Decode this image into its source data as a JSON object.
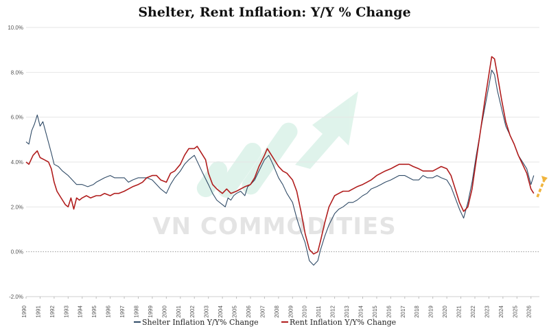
{
  "chart_data": {
    "type": "line",
    "title": "Shelter, Rent Inflation: Y/Y % Change",
    "xlabel": "",
    "ylabel": "",
    "xlim": [
      1990,
      2026.6
    ],
    "ylim": [
      -2,
      10
    ],
    "y_ticks": [
      "-2.0%",
      "0.0%",
      "2.0%",
      "4.0%",
      "6.0%",
      "8.0%",
      "10.0%"
    ],
    "y_tick_values": [
      -2,
      0,
      2,
      4,
      6,
      8,
      10
    ],
    "x_ticks": [
      "1990",
      "1991",
      "1992",
      "1993",
      "1994",
      "1995",
      "1996",
      "1997",
      "1998",
      "1999",
      "2000",
      "2001",
      "2002",
      "2003",
      "2004",
      "2005",
      "2006",
      "2007",
      "2008",
      "2009",
      "2010",
      "2011",
      "2012",
      "2013",
      "2014",
      "2015",
      "2016",
      "2017",
      "2018",
      "2019",
      "2020",
      "2021",
      "2022",
      "2023",
      "2024",
      "2025",
      "2026"
    ],
    "grid": true,
    "legend_position": "bottom",
    "watermark": "VN COMMODITIES",
    "series": [
      {
        "name": "Shelter Inflation Y/Y% Change",
        "color": "#2f4a66",
        "points": [
          [
            1990.0,
            4.9
          ],
          [
            1990.2,
            4.8
          ],
          [
            1990.4,
            5.4
          ],
          [
            1990.6,
            5.7
          ],
          [
            1990.8,
            6.1
          ],
          [
            1991.0,
            5.6
          ],
          [
            1991.2,
            5.8
          ],
          [
            1991.5,
            5.1
          ],
          [
            1991.8,
            4.4
          ],
          [
            1992.0,
            3.9
          ],
          [
            1992.3,
            3.8
          ],
          [
            1992.6,
            3.6
          ],
          [
            1993.0,
            3.4
          ],
          [
            1993.3,
            3.2
          ],
          [
            1993.6,
            3.0
          ],
          [
            1994.0,
            3.0
          ],
          [
            1994.4,
            2.9
          ],
          [
            1994.8,
            3.0
          ],
          [
            1995.0,
            3.1
          ],
          [
            1995.3,
            3.2
          ],
          [
            1995.6,
            3.3
          ],
          [
            1996.0,
            3.4
          ],
          [
            1996.3,
            3.3
          ],
          [
            1996.6,
            3.3
          ],
          [
            1997.0,
            3.3
          ],
          [
            1997.3,
            3.1
          ],
          [
            1997.6,
            3.2
          ],
          [
            1998.0,
            3.3
          ],
          [
            1998.3,
            3.3
          ],
          [
            1998.6,
            3.3
          ],
          [
            1999.0,
            3.2
          ],
          [
            1999.3,
            3.0
          ],
          [
            1999.6,
            2.8
          ],
          [
            2000.0,
            2.6
          ],
          [
            2000.3,
            3.0
          ],
          [
            2000.6,
            3.3
          ],
          [
            2001.0,
            3.6
          ],
          [
            2001.3,
            3.9
          ],
          [
            2001.6,
            4.1
          ],
          [
            2002.0,
            4.3
          ],
          [
            2002.3,
            3.9
          ],
          [
            2002.6,
            3.5
          ],
          [
            2003.0,
            3.0
          ],
          [
            2003.3,
            2.6
          ],
          [
            2003.6,
            2.3
          ],
          [
            2004.0,
            2.1
          ],
          [
            2004.2,
            2.0
          ],
          [
            2004.4,
            2.4
          ],
          [
            2004.6,
            2.3
          ],
          [
            2004.8,
            2.5
          ],
          [
            2005.0,
            2.6
          ],
          [
            2005.3,
            2.7
          ],
          [
            2005.6,
            2.5
          ],
          [
            2005.8,
            2.9
          ],
          [
            2006.0,
            3.0
          ],
          [
            2006.3,
            3.2
          ],
          [
            2006.6,
            3.6
          ],
          [
            2007.0,
            4.1
          ],
          [
            2007.3,
            4.3
          ],
          [
            2007.6,
            3.9
          ],
          [
            2008.0,
            3.3
          ],
          [
            2008.3,
            3.0
          ],
          [
            2008.6,
            2.6
          ],
          [
            2009.0,
            2.2
          ],
          [
            2009.3,
            1.5
          ],
          [
            2009.6,
            0.9
          ],
          [
            2009.9,
            0.4
          ],
          [
            2010.2,
            -0.4
          ],
          [
            2010.5,
            -0.6
          ],
          [
            2010.8,
            -0.4
          ],
          [
            2011.0,
            0.1
          ],
          [
            2011.3,
            0.7
          ],
          [
            2011.6,
            1.2
          ],
          [
            2012.0,
            1.7
          ],
          [
            2012.3,
            1.9
          ],
          [
            2012.6,
            2.0
          ],
          [
            2013.0,
            2.2
          ],
          [
            2013.3,
            2.2
          ],
          [
            2013.6,
            2.3
          ],
          [
            2014.0,
            2.5
          ],
          [
            2014.3,
            2.6
          ],
          [
            2014.6,
            2.8
          ],
          [
            2015.0,
            2.9
          ],
          [
            2015.3,
            3.0
          ],
          [
            2015.6,
            3.1
          ],
          [
            2016.0,
            3.2
          ],
          [
            2016.3,
            3.3
          ],
          [
            2016.6,
            3.4
          ],
          [
            2017.0,
            3.4
          ],
          [
            2017.3,
            3.3
          ],
          [
            2017.6,
            3.2
          ],
          [
            2018.0,
            3.2
          ],
          [
            2018.3,
            3.4
          ],
          [
            2018.6,
            3.3
          ],
          [
            2019.0,
            3.3
          ],
          [
            2019.3,
            3.4
          ],
          [
            2019.6,
            3.3
          ],
          [
            2020.0,
            3.2
          ],
          [
            2020.3,
            2.9
          ],
          [
            2020.6,
            2.4
          ],
          [
            2020.9,
            1.9
          ],
          [
            2021.2,
            1.5
          ],
          [
            2021.5,
            2.2
          ],
          [
            2021.8,
            3.1
          ],
          [
            2022.1,
            4.3
          ],
          [
            2022.4,
            5.4
          ],
          [
            2022.7,
            6.4
          ],
          [
            2023.0,
            7.4
          ],
          [
            2023.2,
            8.1
          ],
          [
            2023.4,
            7.9
          ],
          [
            2023.6,
            7.2
          ],
          [
            2023.9,
            6.4
          ],
          [
            2024.2,
            5.6
          ],
          [
            2024.5,
            5.2
          ],
          [
            2024.8,
            4.8
          ],
          [
            2025.1,
            4.3
          ],
          [
            2025.4,
            4.0
          ],
          [
            2025.7,
            3.7
          ],
          [
            2026.0,
            3.0
          ],
          [
            2026.2,
            3.4
          ]
        ]
      },
      {
        "name": "Rent Inflation Y/Y% Change",
        "color": "#b01c1c",
        "points": [
          [
            1990.0,
            4.0
          ],
          [
            1990.2,
            3.9
          ],
          [
            1990.5,
            4.3
          ],
          [
            1990.8,
            4.5
          ],
          [
            1991.0,
            4.2
          ],
          [
            1991.3,
            4.1
          ],
          [
            1991.6,
            4.0
          ],
          [
            1991.8,
            3.7
          ],
          [
            1992.0,
            3.1
          ],
          [
            1992.2,
            2.7
          ],
          [
            1992.4,
            2.5
          ],
          [
            1992.6,
            2.3
          ],
          [
            1992.8,
            2.1
          ],
          [
            1993.0,
            2.0
          ],
          [
            1993.2,
            2.4
          ],
          [
            1993.4,
            1.9
          ],
          [
            1993.6,
            2.4
          ],
          [
            1993.8,
            2.3
          ],
          [
            1994.0,
            2.4
          ],
          [
            1994.3,
            2.5
          ],
          [
            1994.6,
            2.4
          ],
          [
            1995.0,
            2.5
          ],
          [
            1995.3,
            2.5
          ],
          [
            1995.6,
            2.6
          ],
          [
            1996.0,
            2.5
          ],
          [
            1996.3,
            2.6
          ],
          [
            1996.6,
            2.6
          ],
          [
            1997.0,
            2.7
          ],
          [
            1997.3,
            2.8
          ],
          [
            1997.6,
            2.9
          ],
          [
            1998.0,
            3.0
          ],
          [
            1998.3,
            3.1
          ],
          [
            1998.6,
            3.3
          ],
          [
            1999.0,
            3.4
          ],
          [
            1999.3,
            3.4
          ],
          [
            1999.6,
            3.2
          ],
          [
            2000.0,
            3.1
          ],
          [
            2000.3,
            3.5
          ],
          [
            2000.6,
            3.6
          ],
          [
            2001.0,
            3.9
          ],
          [
            2001.3,
            4.3
          ],
          [
            2001.6,
            4.6
          ],
          [
            2002.0,
            4.6
          ],
          [
            2002.2,
            4.7
          ],
          [
            2002.5,
            4.4
          ],
          [
            2002.8,
            4.1
          ],
          [
            2003.0,
            3.5
          ],
          [
            2003.3,
            3.0
          ],
          [
            2003.6,
            2.8
          ],
          [
            2004.0,
            2.6
          ],
          [
            2004.3,
            2.8
          ],
          [
            2004.6,
            2.6
          ],
          [
            2005.0,
            2.7
          ],
          [
            2005.3,
            2.8
          ],
          [
            2005.6,
            2.9
          ],
          [
            2006.0,
            3.0
          ],
          [
            2006.3,
            3.3
          ],
          [
            2006.6,
            3.8
          ],
          [
            2007.0,
            4.3
          ],
          [
            2007.2,
            4.6
          ],
          [
            2007.5,
            4.3
          ],
          [
            2007.8,
            4.0
          ],
          [
            2008.0,
            3.8
          ],
          [
            2008.3,
            3.6
          ],
          [
            2008.6,
            3.5
          ],
          [
            2009.0,
            3.2
          ],
          [
            2009.3,
            2.7
          ],
          [
            2009.6,
            1.8
          ],
          [
            2009.9,
            0.8
          ],
          [
            2010.2,
            0.1
          ],
          [
            2010.5,
            -0.1
          ],
          [
            2010.8,
            0.0
          ],
          [
            2011.0,
            0.5
          ],
          [
            2011.3,
            1.3
          ],
          [
            2011.6,
            2.0
          ],
          [
            2012.0,
            2.5
          ],
          [
            2012.3,
            2.6
          ],
          [
            2012.6,
            2.7
          ],
          [
            2013.0,
            2.7
          ],
          [
            2013.3,
            2.8
          ],
          [
            2013.6,
            2.9
          ],
          [
            2014.0,
            3.0
          ],
          [
            2014.3,
            3.1
          ],
          [
            2014.6,
            3.2
          ],
          [
            2015.0,
            3.4
          ],
          [
            2015.3,
            3.5
          ],
          [
            2015.6,
            3.6
          ],
          [
            2016.0,
            3.7
          ],
          [
            2016.3,
            3.8
          ],
          [
            2016.6,
            3.9
          ],
          [
            2017.0,
            3.9
          ],
          [
            2017.3,
            3.9
          ],
          [
            2017.6,
            3.8
          ],
          [
            2018.0,
            3.7
          ],
          [
            2018.3,
            3.6
          ],
          [
            2018.6,
            3.6
          ],
          [
            2019.0,
            3.6
          ],
          [
            2019.3,
            3.7
          ],
          [
            2019.6,
            3.8
          ],
          [
            2020.0,
            3.7
          ],
          [
            2020.3,
            3.4
          ],
          [
            2020.6,
            2.8
          ],
          [
            2020.9,
            2.2
          ],
          [
            2021.2,
            1.8
          ],
          [
            2021.5,
            2.0
          ],
          [
            2021.8,
            2.8
          ],
          [
            2022.1,
            4.1
          ],
          [
            2022.4,
            5.4
          ],
          [
            2022.7,
            6.7
          ],
          [
            2023.0,
            7.9
          ],
          [
            2023.2,
            8.7
          ],
          [
            2023.4,
            8.6
          ],
          [
            2023.6,
            7.9
          ],
          [
            2023.9,
            6.8
          ],
          [
            2024.2,
            5.8
          ],
          [
            2024.5,
            5.2
          ],
          [
            2024.8,
            4.8
          ],
          [
            2025.1,
            4.3
          ],
          [
            2025.4,
            3.9
          ],
          [
            2025.7,
            3.5
          ],
          [
            2026.0,
            2.8
          ],
          [
            2026.2,
            2.6
          ]
        ]
      }
    ]
  }
}
